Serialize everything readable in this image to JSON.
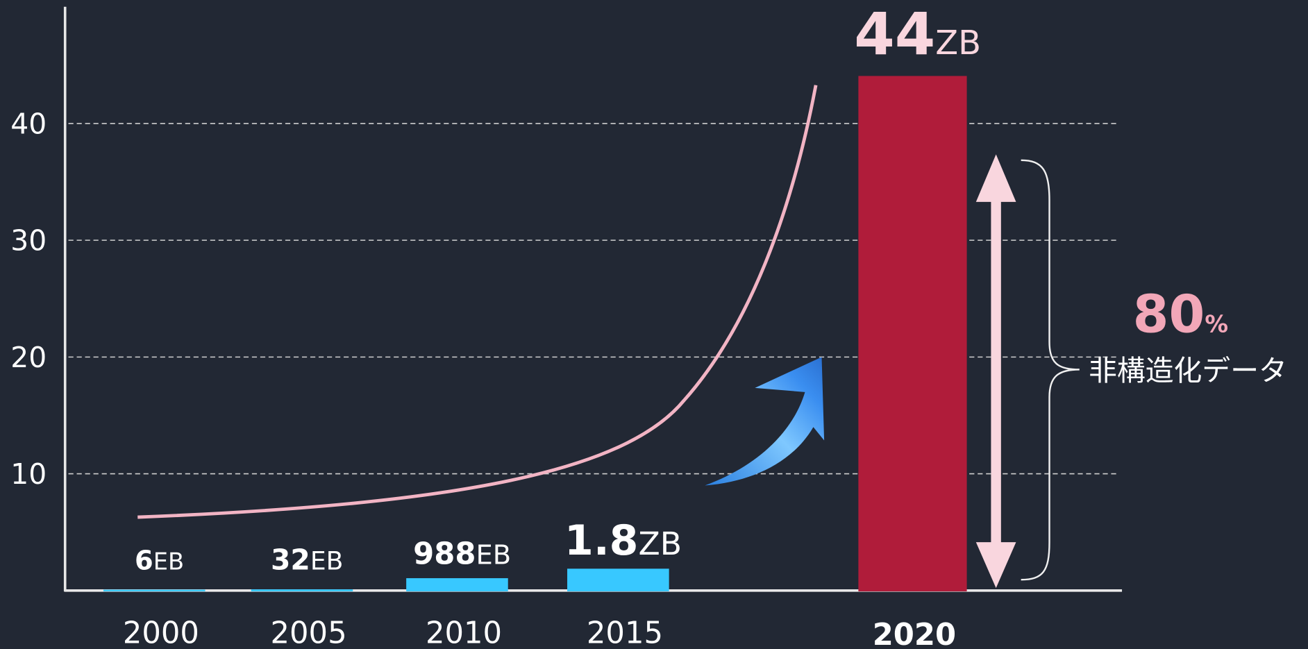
{
  "chart_data": {
    "type": "bar",
    "categories": [
      "2000",
      "2005",
      "2010",
      "2015",
      "2020"
    ],
    "values": [
      0.006,
      0.032,
      0.988,
      1.8,
      44
    ],
    "value_labels": [
      "6EB",
      "32EB",
      "988EB",
      "1.8ZB",
      "44ZB"
    ],
    "colors": [
      "#38c8ff",
      "#38c8ff",
      "#38c8ff",
      "#38c8ff",
      "#b01c3a"
    ],
    "ylim": [
      0,
      50
    ],
    "yticks": [
      10,
      20,
      30,
      40
    ],
    "grid": true,
    "annotations": [
      "80%",
      "非構造化データ"
    ]
  }
}
